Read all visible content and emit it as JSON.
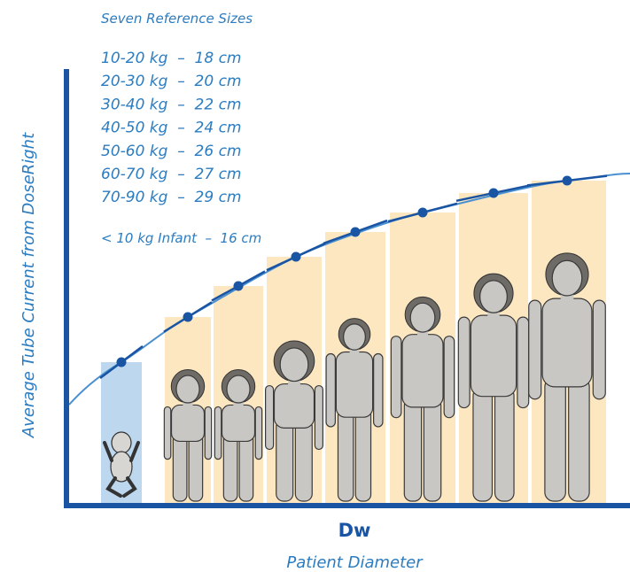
{
  "title": "Seven Reference Sizes",
  "reference_sizes": [
    "10-20 kg  –  18 cm",
    "20-30 kg  –  20 cm",
    "30-40 kg  –  22 cm",
    "40-50 kg  –  24 cm",
    "50-60 kg  –  26 cm",
    "60-70 kg  –  27 cm",
    "70-90 kg  –  29 cm"
  ],
  "infant": "< 10 kg Infant  –  16 cm",
  "y_axis_label": "Average Tube Current from DoseRight",
  "x_axis_label": "Dw",
  "x_axis_sublabel": "Patient Diameter"
}
